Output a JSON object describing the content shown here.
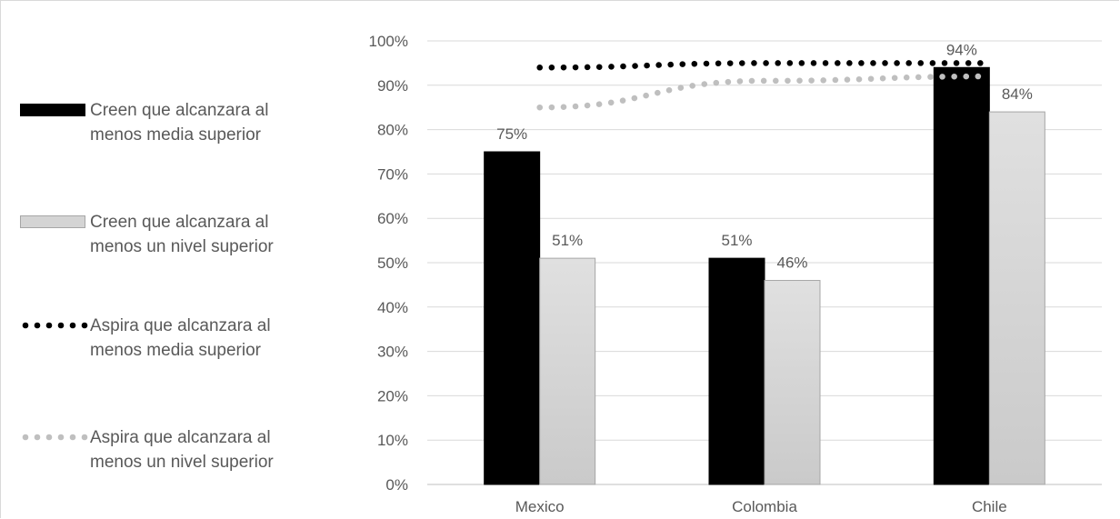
{
  "chart_data": {
    "type": "bar",
    "categories": [
      "Mexico",
      "Colombia",
      "Chile"
    ],
    "series": [
      {
        "name": "Creen que alcanzara al menos media superior",
        "kind": "bar",
        "values": [
          0.75,
          0.51,
          0.94
        ],
        "labels": [
          "75%",
          "51%",
          "94%"
        ],
        "color": "#000000"
      },
      {
        "name": "Creen que alcanzara al menos un nivel superior",
        "kind": "bar",
        "values": [
          0.51,
          0.46,
          0.84
        ],
        "labels": [
          "51%",
          "46%",
          "84%"
        ],
        "color": "#d4d4d4"
      },
      {
        "name": "Aspira que alcanzara al menos media superior",
        "kind": "dotted-line",
        "values": [
          0.94,
          0.95,
          0.95
        ],
        "color": "#000000"
      },
      {
        "name": "Aspira que alcanzara al menos un nivel superior",
        "kind": "dotted-line",
        "values": [
          0.85,
          0.91,
          0.92
        ],
        "color": "#bfbfbf"
      }
    ],
    "yticks": [
      "0%",
      "10%",
      "20%",
      "30%",
      "40%",
      "50%",
      "60%",
      "70%",
      "80%",
      "90%",
      "100%"
    ],
    "ylim": [
      0,
      1
    ],
    "grid": true,
    "legend_position": "left"
  }
}
